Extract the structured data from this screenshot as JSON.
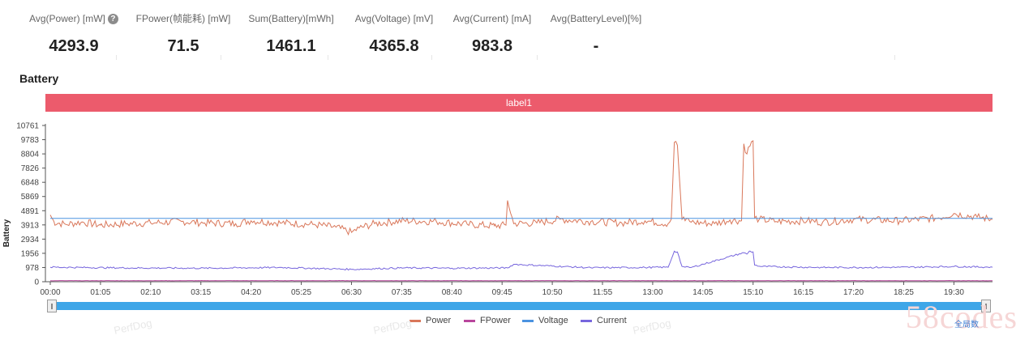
{
  "stats": [
    {
      "label": "Avg(Power) [mW]",
      "value": "4293.9",
      "help": true
    },
    {
      "label": "FPower(帧能耗) [mW]",
      "value": "71.5"
    },
    {
      "label": "Sum(Battery)[mWh]",
      "value": "1461.1"
    },
    {
      "label": "Avg(Voltage) [mV]",
      "value": "4365.8"
    },
    {
      "label": "Avg(Current) [mA]",
      "value": "983.8"
    },
    {
      "label": "Avg(BatteryLevel)[%]",
      "value": "-"
    }
  ],
  "section_title": "Battery",
  "label_bar": "label1",
  "watermark_text": "PerfDog",
  "brand_text": "58codes",
  "reset_label": "全局数",
  "colors": {
    "power": "#d9775a",
    "fpower": "#b8459c",
    "voltage": "#4b93e0",
    "current": "#7766dd",
    "label_bar": "#ec5b6c",
    "slider": "#3ea6e8"
  },
  "chart_data": {
    "type": "line",
    "title": "",
    "xlabel": "",
    "ylabel": "Battery",
    "ylim": [
      0,
      10761
    ],
    "y_ticks": [
      "10761",
      "9783",
      "8804",
      "7826",
      "6848",
      "5869",
      "4891",
      "3913",
      "2934",
      "1956",
      "978",
      "0"
    ],
    "x_ticks": [
      "00:00",
      "01:05",
      "02:10",
      "03:15",
      "04:20",
      "05:25",
      "06:30",
      "07:35",
      "08:40",
      "09:45",
      "10:50",
      "11:55",
      "13:00",
      "14:05",
      "15:10",
      "16:15",
      "17:20",
      "18:25",
      "19:30"
    ],
    "x_minutes": [
      0,
      65,
      130,
      195,
      260,
      325,
      390,
      455,
      520,
      585,
      650,
      715,
      780,
      845,
      910,
      975,
      1040,
      1105,
      1170
    ],
    "x_max_minutes": 1220,
    "series": [
      {
        "name": "Power",
        "color": "#d9775a",
        "x": [
          0,
          5,
          20,
          40,
          65,
          100,
          130,
          170,
          200,
          240,
          260,
          300,
          340,
          370,
          390,
          400,
          420,
          455,
          500,
          540,
          575,
          590,
          592,
          600,
          630,
          660,
          700,
          740,
          770,
          800,
          804,
          808,
          812,
          818,
          822,
          826,
          830,
          860,
          880,
          895,
          898,
          902,
          905,
          910,
          912,
          918,
          940,
          980,
          1000,
          1040,
          1100,
          1150,
          1170,
          1200,
          1220
        ],
        "y": [
          4600,
          4100,
          3950,
          4100,
          3900,
          4000,
          4050,
          4150,
          4050,
          4000,
          4200,
          4050,
          3950,
          3750,
          3400,
          3700,
          4000,
          4200,
          4150,
          3950,
          3850,
          3900,
          5600,
          4000,
          4050,
          4300,
          4150,
          4050,
          4200,
          4000,
          4300,
          9600,
          9400,
          4300,
          4200,
          4350,
          4100,
          4000,
          4250,
          4200,
          9500,
          8800,
          9300,
          9700,
          4400,
          4300,
          4150,
          4200,
          4100,
          4300,
          4200,
          4400,
          4700,
          4450,
          4300
        ]
      },
      {
        "name": "FPower",
        "color": "#b8459c",
        "x": [
          0,
          300,
          600,
          900,
          1220
        ],
        "y": [
          71,
          72,
          71,
          72,
          71
        ]
      },
      {
        "name": "Voltage",
        "color": "#4b93e0",
        "x": [
          0,
          1220
        ],
        "y": [
          4366,
          4366
        ]
      },
      {
        "name": "Current",
        "color": "#7766dd",
        "x": [
          0,
          100,
          200,
          300,
          390,
          455,
          520,
          592,
          600,
          700,
          770,
          800,
          808,
          812,
          818,
          822,
          830,
          898,
          902,
          905,
          910,
          912,
          920,
          1000,
          1100,
          1170,
          1220
        ],
        "y": [
          1000,
          950,
          930,
          980,
          850,
          950,
          930,
          950,
          1200,
          960,
          980,
          1000,
          2100,
          2050,
          1050,
          1000,
          980,
          2000,
          1900,
          2100,
          2050,
          1150,
          1050,
          980,
          990,
          1050,
          1000
        ]
      }
    ],
    "legend": [
      "Power",
      "FPower",
      "Voltage",
      "Current"
    ],
    "legend_position": "bottom-center",
    "grid": false
  }
}
